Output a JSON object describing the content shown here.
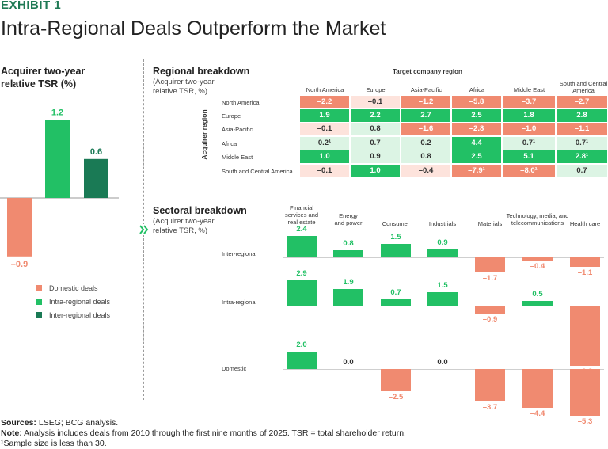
{
  "exhibit_label": "EXHIBIT 1",
  "title": "Intra-Regional Deals Outperform the Market",
  "colors": {
    "domestic": "#f08a70",
    "intra": "#22c065",
    "inter": "#1a7a55",
    "neg_strong": "#f08a70",
    "neg_light": "#fde3dc",
    "pos_strong": "#22c065",
    "pos_light": "#dcf4e4"
  },
  "left_panel": {
    "title_line1": "Acquirer two-year",
    "title_line2": "relative TSR (%)",
    "legend": [
      "Domestic deals",
      "Intra-regional deals",
      "Inter-regional deals"
    ]
  },
  "regional": {
    "title": "Regional breakdown",
    "subtitle_line1": "(Acquirer two-year",
    "subtitle_line2": "relative TSR, %)",
    "col_axis_title": "Target company region",
    "row_axis_title": "Acquirer region",
    "columns": [
      "North America",
      "Europe",
      "Asia-Pacific",
      "Africa",
      "Middle East",
      "South and Central America"
    ],
    "rows": [
      {
        "label": "North America",
        "cells": [
          "–2.2",
          "–0.1",
          "–1.2",
          "–5.8",
          "–3.7",
          "–2.7"
        ]
      },
      {
        "label": "Europe",
        "cells": [
          "1.9",
          "2.2",
          "2.7",
          "2.5",
          "1.8",
          "2.8"
        ]
      },
      {
        "label": "Asia-Pacific",
        "cells": [
          "–0.1",
          "0.8",
          "–1.6",
          "–2.8",
          "–1.0",
          "–1.1"
        ]
      },
      {
        "label": "Africa",
        "cells": [
          "0.2¹",
          "0.7",
          "0.2",
          "4.4",
          "0.7¹",
          "0.7¹"
        ]
      },
      {
        "label": "Middle East",
        "cells": [
          "1.0",
          "0.9",
          "0.8",
          "2.5",
          "5.1",
          "2.8¹"
        ]
      },
      {
        "label": "South and Central America",
        "cells": [
          "–0.1",
          "1.0",
          "–0.4",
          "–7.9¹",
          "–8.0¹",
          "0.7"
        ]
      }
    ],
    "cell_styles": [
      [
        "ns",
        "nl",
        "ns",
        "ns",
        "ns",
        "ns"
      ],
      [
        "ps",
        "ps",
        "ps",
        "ps",
        "ps",
        "ps"
      ],
      [
        "nl",
        "pl",
        "ns",
        "ns",
        "ns",
        "ns"
      ],
      [
        "pl",
        "pl",
        "pl",
        "ps",
        "pl",
        "pl"
      ],
      [
        "ps",
        "pl",
        "pl",
        "ps",
        "ps",
        "ps"
      ],
      [
        "nl",
        "ps",
        "nl",
        "ns",
        "ns",
        "pl"
      ]
    ]
  },
  "sectoral": {
    "title": "Sectoral breakdown",
    "subtitle_line1": "(Acquirer two-year",
    "subtitle_line2": "relative TSR, %)",
    "columns": [
      [
        "Financial",
        "services and",
        "real estate"
      ],
      [
        "Energy",
        "and power"
      ],
      [
        "Consumer"
      ],
      [
        "Industrials"
      ],
      [
        "Materials"
      ],
      [
        "Technology, media, and",
        "telecommunications"
      ],
      [
        "Health care"
      ]
    ]
  },
  "chart_data": [
    {
      "type": "bar",
      "categories": [
        "Domestic deals",
        "Intra-regional deals",
        "Inter-regional deals"
      ],
      "values": [
        -0.9,
        1.2,
        0.6
      ],
      "labels": [
        "–0.9",
        "1.2",
        "0.6"
      ],
      "title": "Acquirer two-year relative TSR (%)"
    },
    {
      "type": "table",
      "title": "Regional breakdown",
      "row_header": "Acquirer region",
      "column_header": "Target company region",
      "columns": [
        "North America",
        "Europe",
        "Asia-Pacific",
        "Africa",
        "Middle East",
        "South and Central America"
      ],
      "rows": [
        "North America",
        "Europe",
        "Asia-Pacific",
        "Africa",
        "Middle East",
        "South and Central America"
      ],
      "values": [
        [
          -2.2,
          -0.1,
          -1.2,
          -5.8,
          -3.7,
          -2.7
        ],
        [
          1.9,
          2.2,
          2.7,
          2.5,
          1.8,
          2.8
        ],
        [
          -0.1,
          0.8,
          -1.6,
          -2.8,
          -1.0,
          -1.1
        ],
        [
          0.2,
          0.7,
          0.2,
          4.4,
          0.7,
          0.7
        ],
        [
          1.0,
          0.9,
          0.8,
          2.5,
          5.1,
          2.8
        ],
        [
          -0.1,
          1.0,
          -0.4,
          -7.9,
          -8.0,
          0.7
        ]
      ]
    },
    {
      "type": "bar",
      "title": "Sectoral breakdown",
      "categories": [
        "Financial services and real estate",
        "Energy and power",
        "Consumer",
        "Industrials",
        "Materials",
        "Technology, media, and telecommunications",
        "Health care"
      ],
      "series": [
        {
          "name": "Inter-regional",
          "values": [
            2.4,
            0.8,
            1.5,
            0.9,
            -1.7,
            -0.4,
            -1.1
          ],
          "labels": [
            "2.4",
            "0.8",
            "1.5",
            "0.9",
            "–1.7",
            "–0.4",
            "–1.1"
          ]
        },
        {
          "name": "Intra-regional",
          "values": [
            2.9,
            1.9,
            0.7,
            1.5,
            -0.9,
            0.5,
            -6.8
          ],
          "labels": [
            "2.9",
            "1.9",
            "0.7",
            "1.5",
            "–0.9",
            "0.5",
            "–6.8"
          ]
        },
        {
          "name": "Domestic",
          "values": [
            2.0,
            0.0,
            -2.5,
            0.0,
            -3.7,
            -4.4,
            -5.3
          ],
          "labels": [
            "2.0",
            "0.0",
            "–2.5",
            "0.0",
            "–3.7",
            "–4.4",
            "–5.3"
          ]
        }
      ]
    }
  ],
  "footer": {
    "sources_label": "Sources:",
    "sources_text": " LSEG; BCG analysis.",
    "note_label": "Note:",
    "note_text": " Analysis includes deals from 2010 through the first nine months of 2025. TSR = total shareholder return.",
    "footnote": "¹Sample size is less than 30."
  }
}
